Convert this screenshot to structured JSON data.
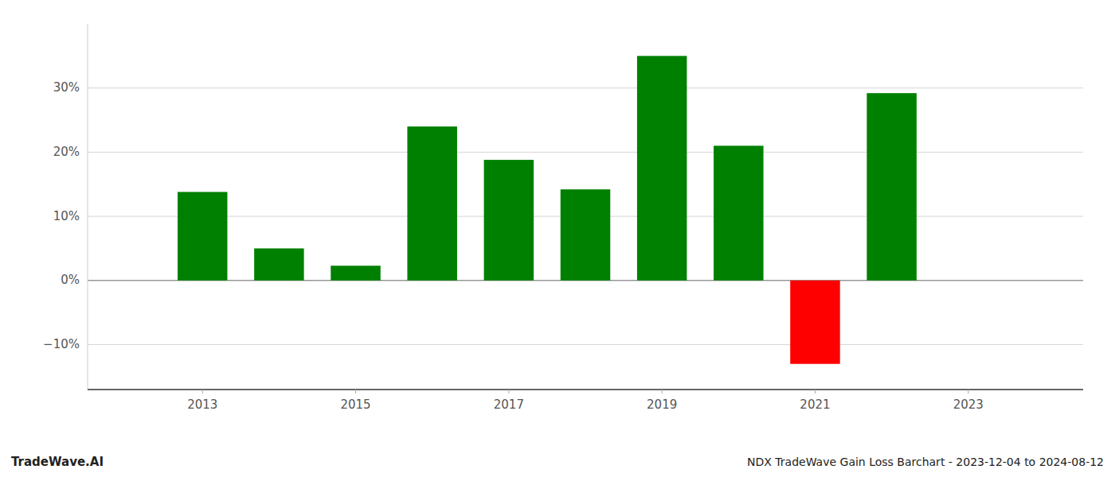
{
  "chart_data": {
    "type": "bar",
    "title": "NDX TradeWave Gain Loss Barchart - 2023-12-04 to 2024-08-12",
    "annotations": [
      "TradeWave.AI"
    ],
    "x": [
      2013,
      2014,
      2015,
      2016,
      2017,
      2018,
      2019,
      2020,
      2021,
      2022
    ],
    "values": [
      13.8,
      5.0,
      2.3,
      24.0,
      18.8,
      14.2,
      35.0,
      21.0,
      -13.0,
      29.2
    ],
    "colors": [
      "#008000",
      "#008000",
      "#008000",
      "#008000",
      "#008000",
      "#008000",
      "#008000",
      "#008000",
      "#ff0000",
      "#008000"
    ],
    "xlim": [
      2011.5,
      2024.5
    ],
    "xticks": [
      2013,
      2015,
      2017,
      2019,
      2021,
      2023
    ],
    "ylim": [
      -17,
      40
    ],
    "yticks": [
      {
        "value": -10,
        "label": "−10%"
      },
      {
        "value": 0,
        "label": "0%"
      },
      {
        "value": 10,
        "label": "10%"
      },
      {
        "value": 20,
        "label": "20%"
      },
      {
        "value": 30,
        "label": "30%"
      }
    ],
    "grid": true
  }
}
